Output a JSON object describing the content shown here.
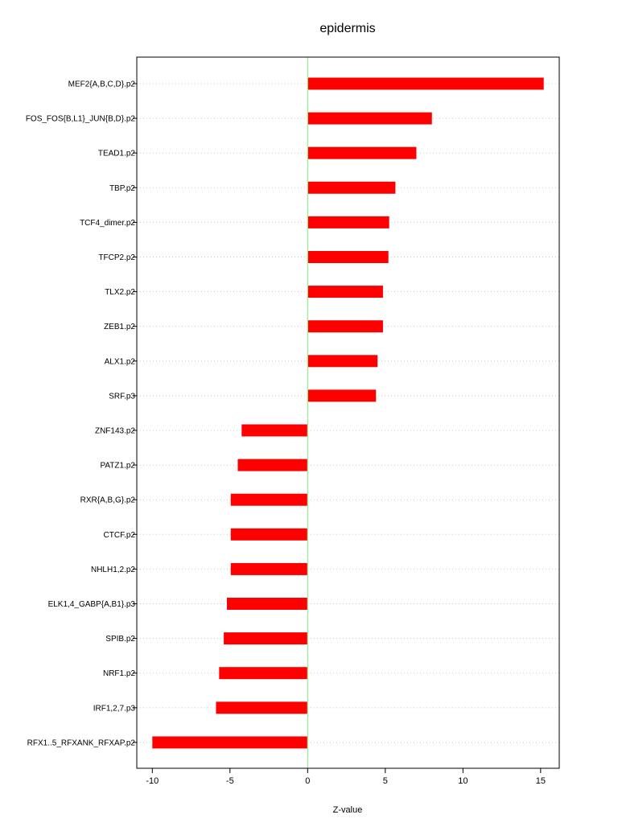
{
  "chart_data": {
    "type": "bar",
    "orientation": "horizontal",
    "title": "epidermis",
    "xlabel": "Z-value",
    "ylabel": "",
    "xlim": [
      -11,
      16.2
    ],
    "xticks": [
      -10,
      -5,
      0,
      5,
      10,
      15
    ],
    "xtick_labels": [
      "-10",
      "-5",
      "0",
      "5",
      "10",
      "15"
    ],
    "grid": "horizontal dotted",
    "reference_line": 0,
    "categories": [
      "MEF2{A,B,C,D}.p2",
      "FOS_FOS{B,L1}_JUN{B,D}.p2",
      "TEAD1.p2",
      "TBP.p2",
      "TCF4_dimer.p2",
      "TFCP2.p2",
      "TLX2.p2",
      "ZEB1.p2",
      "ALX1.p2",
      "SRF.p3",
      "ZNF143.p2",
      "PATZ1.p2",
      "RXR{A,B,G}.p2",
      "CTCF.p2",
      "NHLH1,2.p2",
      "ELK1,4_GABP{A,B1}.p3",
      "SPIB.p2",
      "NRF1.p2",
      "IRF1,2,7.p3",
      "RFX1..5_RFXANK_RFXAP.p2"
    ],
    "values": [
      15.2,
      8.0,
      7.0,
      5.65,
      5.25,
      5.2,
      4.85,
      4.85,
      4.5,
      4.4,
      -4.25,
      -4.5,
      -4.95,
      -4.95,
      -4.95,
      -5.2,
      -5.4,
      -5.7,
      -5.9,
      -10.0
    ],
    "colors": {
      "bar": "#ff0000",
      "zero_line": "#90ee90",
      "grid": "#c8c8c8",
      "frame": "#000000"
    }
  }
}
